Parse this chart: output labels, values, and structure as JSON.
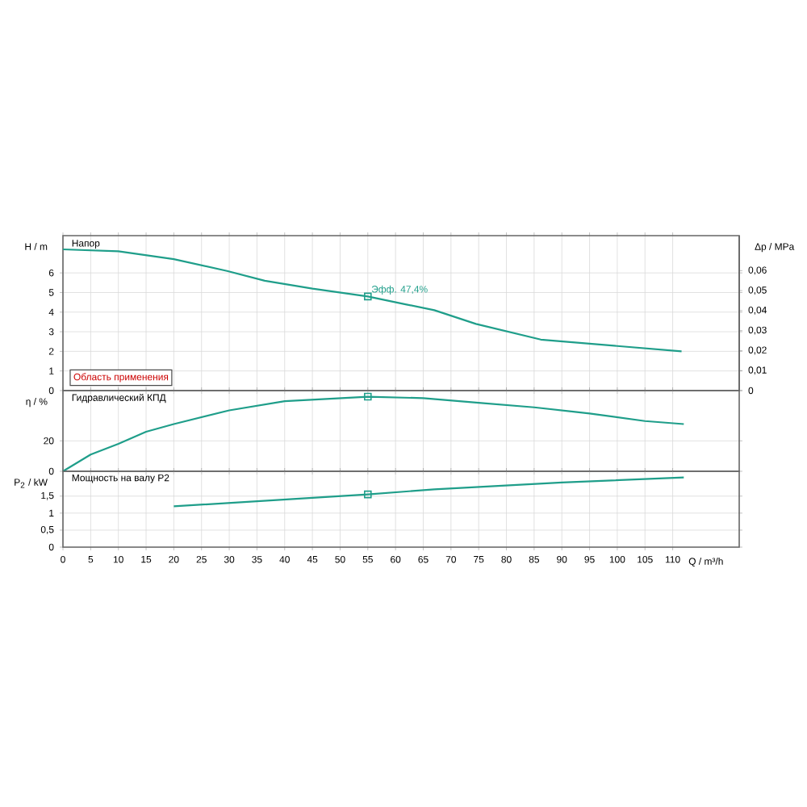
{
  "chart_data": [
    {
      "type": "line",
      "ylabel": "H / m",
      "y2label": "Δp / MPa",
      "annotations": [
        "Напор",
        {
          "text": "Эфф. 47,4%",
          "x": 55,
          "y": 4.8
        },
        "Область применения"
      ],
      "series": [
        {
          "type": "line",
          "color": "#1f9e8a",
          "x": [
            0,
            10,
            20,
            29.6,
            36.4,
            45,
            55,
            61.8,
            67,
            74.5,
            86.2,
            98.9,
            111.6
          ],
          "values": [
            7.2,
            7.1,
            6.7,
            6.1,
            5.6,
            5.2,
            4.8,
            4.4,
            4.1,
            3.4,
            2.6,
            2.3,
            2.0
          ]
        },
        {
          "type": "scatter",
          "marker": "square",
          "color": "#1f9e8a",
          "x": [
            55
          ],
          "values": [
            4.8
          ]
        }
      ],
      "xlim": [
        0,
        122
      ],
      "xticks": [
        0,
        5,
        10,
        15,
        20,
        25,
        30,
        35,
        40,
        45,
        50,
        55,
        60,
        65,
        70,
        75,
        80,
        85,
        90,
        95,
        100,
        105,
        110
      ],
      "ylim": [
        0,
        7.9
      ],
      "yticks": [
        0,
        1,
        2,
        3,
        4,
        5,
        6
      ],
      "y2lim": [
        0,
        0.0775
      ],
      "y2ticks": [
        0,
        {
          "value": 0.01,
          "label": "0,01"
        },
        {
          "value": 0.02,
          "label": "0,02"
        },
        {
          "value": 0.03,
          "label": "0,03"
        },
        {
          "value": 0.04,
          "label": "0,04"
        },
        {
          "value": 0.05,
          "label": "0,05"
        },
        {
          "value": 0.06,
          "label": "0,06"
        }
      ],
      "grid": true,
      "tick_labels": "y"
    },
    {
      "type": "line",
      "ylabel": "η / %",
      "annotations": [
        "Гидравлический КПД"
      ],
      "series": [
        {
          "type": "line",
          "color": "#1f9e8a",
          "x": [
            0,
            5,
            10,
            15,
            20,
            30,
            40,
            55,
            65,
            75,
            85,
            95,
            105,
            112
          ],
          "values": [
            0,
            11,
            18,
            26,
            31,
            40,
            46,
            49,
            48,
            45,
            42,
            38,
            33,
            31
          ]
        },
        {
          "type": "scatter",
          "marker": "square",
          "color": "#1f9e8a",
          "x": [
            55
          ],
          "values": [
            49
          ]
        }
      ],
      "xlim": [
        0,
        122
      ],
      "xticks": [
        0,
        5,
        10,
        15,
        20,
        25,
        30,
        35,
        40,
        45,
        50,
        55,
        60,
        65,
        70,
        75,
        80,
        85,
        90,
        95,
        100,
        105,
        110
      ],
      "ylim": [
        0,
        53
      ],
      "yticks": [
        0,
        20
      ],
      "grid": true,
      "tick_labels": "y"
    },
    {
      "type": "line",
      "ylabel": "P$_{2}$ / kW",
      "xlabel": "Q / m³/h",
      "annotations": [
        "Мощность на валу P2"
      ],
      "series": [
        {
          "type": "line",
          "color": "#1f9e8a",
          "x": [
            20,
            55,
            67,
            90,
            112
          ],
          "values": [
            1.2,
            1.55,
            1.7,
            1.9,
            2.05
          ]
        },
        {
          "type": "scatter",
          "marker": "square",
          "color": "#1f9e8a",
          "x": [
            55
          ],
          "values": [
            1.55
          ]
        }
      ],
      "xlim": [
        0,
        122
      ],
      "xticks": [
        0,
        5,
        10,
        15,
        20,
        25,
        30,
        35,
        40,
        45,
        50,
        55,
        60,
        65,
        70,
        75,
        80,
        85,
        90,
        95,
        100,
        105,
        110
      ],
      "ylim": [
        0,
        2.23
      ],
      "yticks": [
        0,
        {
          "value": 0.5,
          "label": "0,5"
        },
        1,
        {
          "value": 1.5,
          "label": "1,5"
        }
      ],
      "grid": true
    }
  ]
}
